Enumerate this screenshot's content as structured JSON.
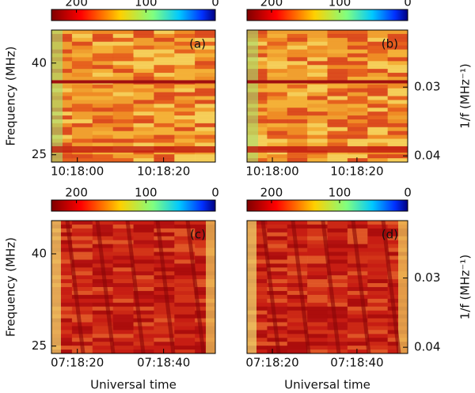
{
  "chart_data": [
    {
      "type": "heatmap",
      "panel_label": "(a)",
      "ylabel": "Frequency (MHz)",
      "xlim": [
        "10:17:54",
        "10:18:32"
      ],
      "xticks": [
        "10:18:00",
        "10:18:20"
      ],
      "ylim": [
        23.8,
        45.4
      ],
      "yticks": [
        25,
        40
      ],
      "colorbar": {
        "lim": [
          236,
          0
        ],
        "ticks": [
          200,
          100,
          0
        ]
      }
    },
    {
      "type": "heatmap",
      "panel_label": "(b)",
      "y2label": "1/f (MHz⁻¹)",
      "xlim": [
        "10:17:54",
        "10:18:32"
      ],
      "xticks": [
        "10:18:00",
        "10:18:20"
      ],
      "y2lim": [
        0.0409,
        0.0217
      ],
      "y2ticks": [
        0.03,
        0.04
      ],
      "colorbar": {
        "lim": [
          236,
          0
        ],
        "ticks": [
          200,
          100,
          0
        ]
      }
    },
    {
      "type": "heatmap",
      "panel_label": "(c)",
      "ylabel": "Frequency (MHz)",
      "xlabel": "Universal time",
      "xlim": [
        "07:18:14",
        "07:18:52"
      ],
      "xticks": [
        "07:18:20",
        "07:18:40"
      ],
      "ylim": [
        23.8,
        45.4
      ],
      "yticks": [
        25,
        40
      ],
      "colorbar": {
        "lim": [
          236,
          0
        ],
        "ticks": [
          200,
          100,
          0
        ]
      }
    },
    {
      "type": "heatmap",
      "panel_label": "(d)",
      "xlabel": "Universal time",
      "y2label": "1/f (MHz⁻¹)",
      "xlim": [
        "07:18:14",
        "07:18:52"
      ],
      "xticks": [
        "07:18:20",
        "07:18:40"
      ],
      "y2lim": [
        0.0409,
        0.0217
      ],
      "y2ticks": [
        0.03,
        0.04
      ],
      "colorbar": {
        "lim": [
          236,
          0
        ],
        "ticks": [
          200,
          100,
          0
        ]
      }
    }
  ]
}
